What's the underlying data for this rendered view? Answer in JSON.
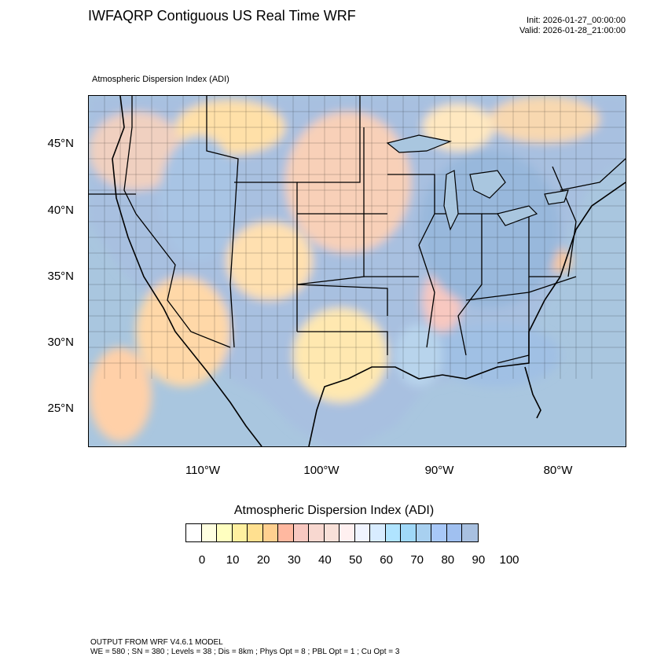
{
  "header": {
    "title": "IWFAQRP Contiguous US Real Time WRF",
    "init": "Init: 2026-01-27_00:00:00",
    "valid": "Valid: 2026-01-28_21:00:00",
    "subtitle": "Atmospheric Dispersion Index   (ADI)"
  },
  "map": {
    "latitude_labels": [
      "45°N",
      "40°N",
      "35°N",
      "30°N",
      "25°N"
    ],
    "longitude_labels": [
      "110°W",
      "100°W",
      "90°W",
      "80°W"
    ],
    "field": "Atmospheric Dispersion Index",
    "ocean_color": "#a9c6df"
  },
  "colorbar": {
    "title": "Atmospheric Dispersion Index  (ADI)",
    "colors": [
      "#ffffff",
      "#ffffe0",
      "#ffffc0",
      "#fff0a0",
      "#ffe090",
      "#ffd090",
      "#ffb8a0",
      "#f8c8c0",
      "#f8d8d0",
      "#f8e0d8",
      "#fff0f0",
      "#f0f4ff",
      "#d8ecff",
      "#b0e4ff",
      "#a0d8f8",
      "#a8d0f0",
      "#a8c8f8",
      "#a0c0f0",
      "#a8c0e0"
    ],
    "tick_labels": [
      "0",
      "10",
      "20",
      "30",
      "40",
      "50",
      "60",
      "70",
      "80",
      "90",
      "100"
    ]
  },
  "footer": {
    "line1": "OUTPUT FROM WRF V4.6.1 MODEL",
    "line2": "WE = 580 ; SN = 380 ; Levels = 38 ; Dis = 8km ; Phys Opt = 8 ; PBL Opt = 1 ; Cu Opt = 3"
  }
}
